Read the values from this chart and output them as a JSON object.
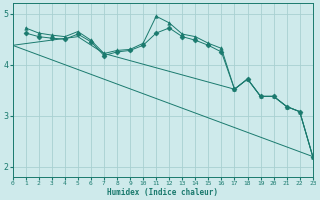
{
  "xlabel": "Humidex (Indice chaleur)",
  "xlim": [
    0,
    23
  ],
  "ylim": [
    1.8,
    5.2
  ],
  "yticks": [
    2,
    3,
    4,
    5
  ],
  "bg_color": "#ceeaeb",
  "grid_color": "#a8d0d1",
  "line_color": "#1a7a6e",
  "lines": [
    {
      "x": [
        1,
        2,
        3,
        4,
        5,
        6,
        7,
        8,
        9,
        10,
        11,
        12,
        13,
        14,
        15,
        16,
        17,
        18,
        19,
        20,
        21,
        22,
        23
      ],
      "y": [
        4.72,
        4.62,
        4.58,
        4.55,
        4.65,
        4.48,
        4.22,
        4.28,
        4.3,
        4.42,
        4.95,
        4.82,
        4.6,
        4.55,
        4.42,
        4.32,
        3.52,
        3.72,
        3.38,
        3.38,
        3.18,
        3.08,
        2.2
      ],
      "marker": "^"
    },
    {
      "x": [
        1,
        2,
        3,
        4,
        5,
        6,
        7,
        8,
        9,
        10,
        11,
        12,
        13,
        14,
        15,
        16,
        17,
        18,
        19,
        20,
        21,
        22,
        23
      ],
      "y": [
        4.62,
        4.55,
        4.52,
        4.5,
        4.6,
        4.45,
        4.18,
        4.25,
        4.28,
        4.38,
        4.62,
        4.72,
        4.55,
        4.48,
        4.38,
        4.25,
        3.52,
        3.72,
        3.38,
        3.38,
        3.18,
        3.08,
        2.2
      ],
      "marker": "D"
    },
    {
      "x": [
        0,
        23
      ],
      "y": [
        4.38,
        2.2
      ],
      "marker": "None"
    },
    {
      "x": [
        0,
        5,
        7,
        17,
        18,
        19,
        20,
        21,
        22,
        23
      ],
      "y": [
        4.38,
        4.55,
        4.22,
        3.52,
        3.72,
        3.38,
        3.38,
        3.18,
        3.08,
        2.2
      ],
      "marker": "None"
    }
  ]
}
